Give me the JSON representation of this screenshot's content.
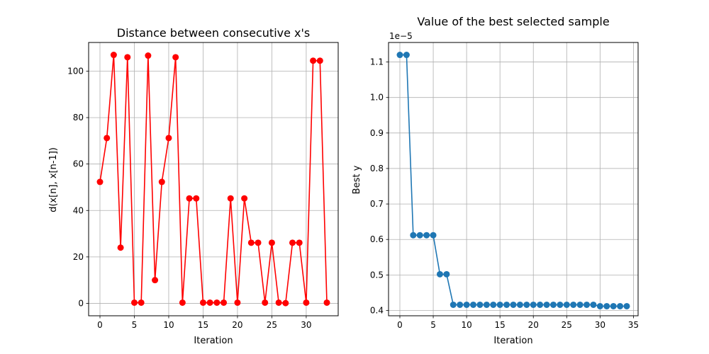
{
  "chart_data": [
    {
      "type": "line",
      "title": "Distance between consecutive x's",
      "xlabel": "Iteration",
      "ylabel": "d(x[n], x[n-1])",
      "xlim": [
        -1.65,
        34.65
      ],
      "ylim": [
        -5.35,
        112.35
      ],
      "xticks": [
        0,
        5,
        10,
        15,
        20,
        25,
        30
      ],
      "yticks": [
        0,
        20,
        40,
        60,
        80,
        100
      ],
      "grid": true,
      "series": [
        {
          "color": "#ff0000",
          "marker": "circle",
          "x": [
            0,
            1,
            2,
            3,
            4,
            5,
            6,
            7,
            8,
            9,
            10,
            11,
            12,
            13,
            14,
            15,
            16,
            17,
            18,
            19,
            20,
            21,
            22,
            23,
            24,
            25,
            26,
            27,
            28,
            29,
            30,
            31,
            32,
            33
          ],
          "y": [
            52.3,
            71.2,
            107,
            24,
            106,
            0.3,
            0.3,
            106.7,
            10,
            52.3,
            71.2,
            106,
            0.3,
            45.2,
            45.2,
            0.3,
            0.3,
            0.3,
            0.3,
            45.2,
            0.3,
            45.2,
            26.1,
            26.1,
            0.3,
            26.1,
            0.3,
            0.1,
            26.1,
            26.1,
            0.3,
            104.5,
            104.5,
            0.3
          ]
        }
      ]
    },
    {
      "type": "line",
      "title": "Value of the best selected sample",
      "xlabel": "Iteration",
      "ylabel": "Best y",
      "offset_text": "1e−5",
      "xlim": [
        -1.7,
        35.7
      ],
      "ylim": [
        0.385,
        1.155
      ],
      "yscale_factor": "1e-5",
      "xticks": [
        0,
        5,
        10,
        15,
        20,
        25,
        30,
        35
      ],
      "yticks": [
        0.4,
        0.5,
        0.6,
        0.7,
        0.8,
        0.9,
        1.0,
        1.1
      ],
      "grid": true,
      "series": [
        {
          "color": "#1f77b4",
          "marker": "circle",
          "x": [
            0,
            1,
            2,
            3,
            4,
            5,
            6,
            7,
            8,
            9,
            10,
            11,
            12,
            13,
            14,
            15,
            16,
            17,
            18,
            19,
            20,
            21,
            22,
            23,
            24,
            25,
            26,
            27,
            28,
            29,
            30,
            31,
            32,
            33,
            34
          ],
          "y": [
            1.12,
            1.12,
            0.612,
            0.612,
            0.612,
            0.612,
            0.502,
            0.502,
            0.416,
            0.416,
            0.416,
            0.416,
            0.416,
            0.416,
            0.416,
            0.416,
            0.416,
            0.416,
            0.416,
            0.416,
            0.416,
            0.416,
            0.416,
            0.416,
            0.416,
            0.416,
            0.416,
            0.416,
            0.416,
            0.416,
            0.412,
            0.412,
            0.412,
            0.412,
            0.412
          ]
        }
      ]
    }
  ]
}
